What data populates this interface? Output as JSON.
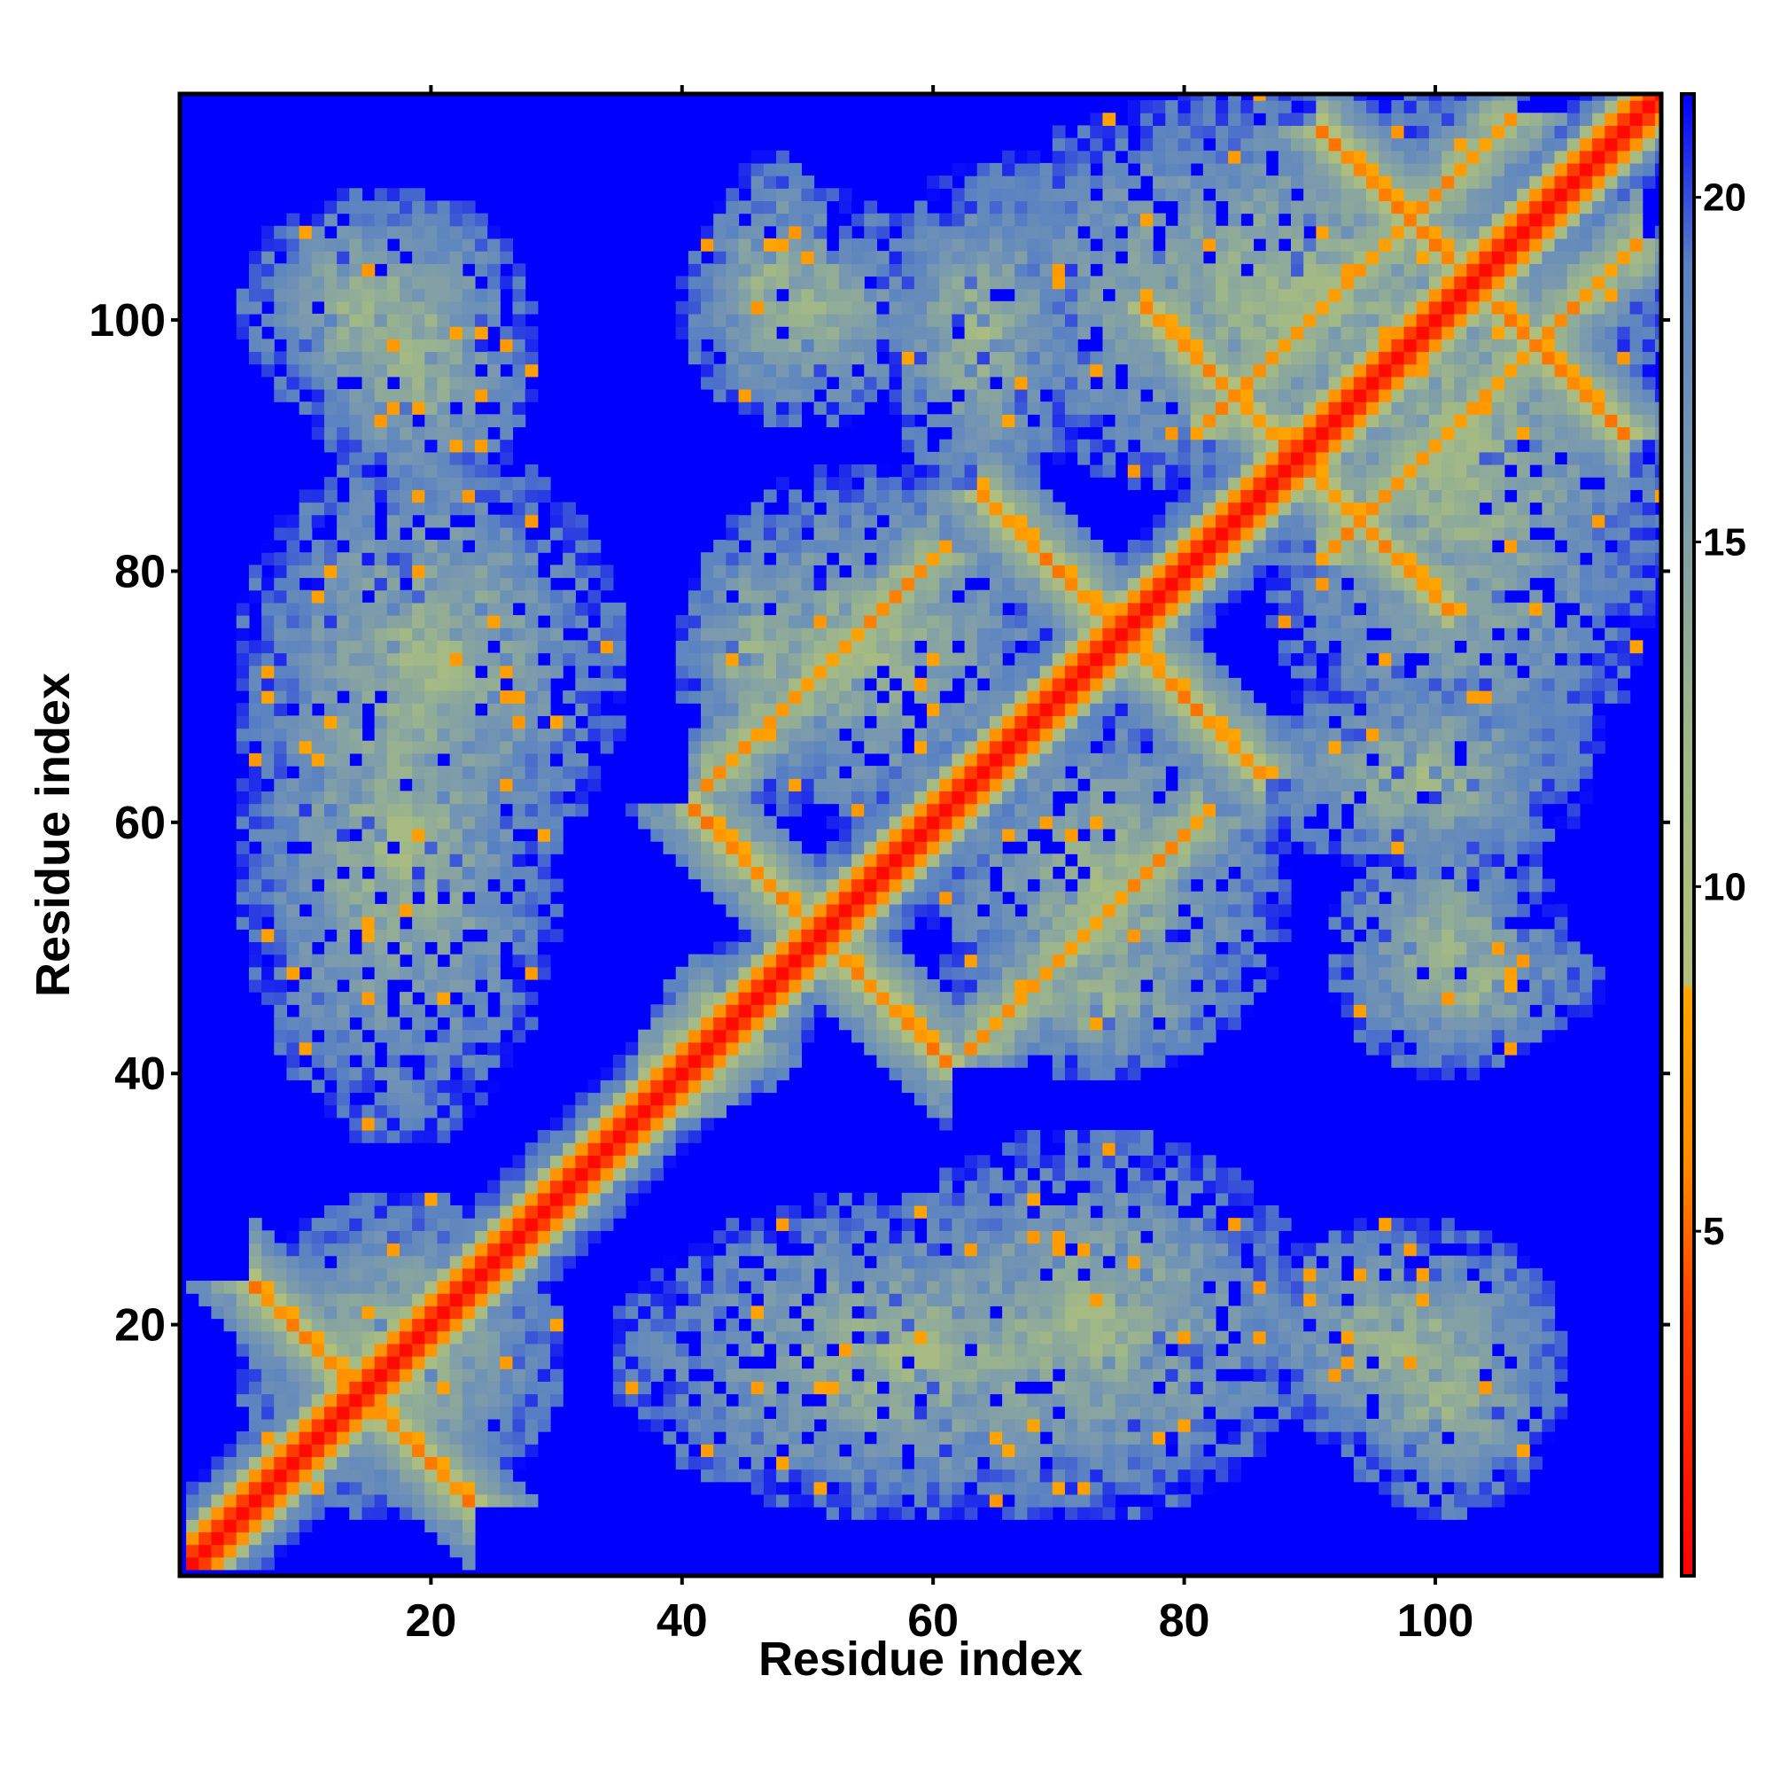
{
  "chart_data": {
    "type": "heatmap",
    "title": "",
    "xlabel": "Residue index",
    "ylabel": "Residue index",
    "n_residues": 118,
    "xlim": [
      1,
      118
    ],
    "ylim": [
      1,
      118
    ],
    "x_ticks": [
      20,
      40,
      60,
      80,
      100
    ],
    "y_ticks": [
      20,
      40,
      60,
      80,
      100
    ],
    "x_tick_labels": [
      "20",
      "40",
      "60",
      "80",
      "100"
    ],
    "y_tick_labels": [
      "20",
      "40",
      "60",
      "80",
      "100"
    ],
    "colorbar": {
      "range": [
        0,
        21.5
      ],
      "ticks": [
        5,
        10,
        15,
        20
      ],
      "tick_labels": [
        "5",
        "10",
        "15",
        "20"
      ],
      "stops": [
        {
          "value": 0,
          "color": "#ff0000"
        },
        {
          "value": 4,
          "color": "#ff4400"
        },
        {
          "value": 6,
          "color": "#ff8c00"
        },
        {
          "value": 8.5,
          "color": "#ffa500"
        },
        {
          "value": 8.6,
          "color": "#b4c07a"
        },
        {
          "value": 12,
          "color": "#a0b888"
        },
        {
          "value": 16,
          "color": "#7898b0"
        },
        {
          "value": 19,
          "color": "#5a82c2"
        },
        {
          "value": 21.5,
          "color": "#0000ff"
        }
      ]
    },
    "background_color": "#0000ff",
    "contact_features": [
      {
        "kind": "diagonal"
      },
      {
        "kind": "antiparallel",
        "sum": 29,
        "from": 6,
        "to": 23
      },
      {
        "kind": "antiparallel",
        "sum": 102,
        "from": 42,
        "to": 61
      },
      {
        "kind": "antiparallel",
        "sum": 150,
        "from": 64,
        "to": 86
      },
      {
        "kind": "antiparallel",
        "sum": 178,
        "from": 87,
        "to": 101
      },
      {
        "kind": "antiparallel",
        "sum": 206,
        "from": 91,
        "to": 115
      },
      {
        "kind": "parallel",
        "offset": -21,
        "from": 63,
        "to": 81
      },
      {
        "kind": "parallel",
        "offset": -10,
        "from": 91,
        "to": 116
      },
      {
        "kind": "parallel",
        "offset": 2,
        "from": 37,
        "to": 42
      },
      {
        "kind": "patch",
        "i": [
          5,
          30
        ],
        "j": [
          5,
          30
        ]
      },
      {
        "kind": "patch",
        "i": [
          5,
          30
        ],
        "j": [
          35,
          82
        ]
      },
      {
        "kind": "patch",
        "i": [
          5,
          25
        ],
        "j": [
          92,
          110
        ]
      },
      {
        "kind": "patch",
        "i": [
          38,
          50
        ],
        "j": [
          38,
          50
        ]
      },
      {
        "kind": "patch",
        "i": [
          40,
          52
        ],
        "j": [
          62,
          84
        ]
      },
      {
        "kind": "patch",
        "i": [
          42,
          52
        ],
        "j": [
          92,
          113
        ]
      },
      {
        "kind": "patch",
        "i": [
          56,
          72
        ],
        "j": [
          86,
          112
        ]
      },
      {
        "kind": "patch",
        "i": [
          55,
          90
        ],
        "j": [
          5,
          35
        ]
      },
      {
        "kind": "patch",
        "i": [
          60,
          88
        ],
        "j": [
          40,
          70
        ]
      },
      {
        "kind": "patch",
        "i": [
          85,
          110
        ],
        "j": [
          10,
          28
        ]
      },
      {
        "kind": "patch",
        "i": [
          86,
          118
        ],
        "j": [
          60,
          118
        ]
      },
      {
        "kind": "patch",
        "i": [
          92,
          110
        ],
        "j": [
          40,
          60
        ]
      }
    ]
  }
}
